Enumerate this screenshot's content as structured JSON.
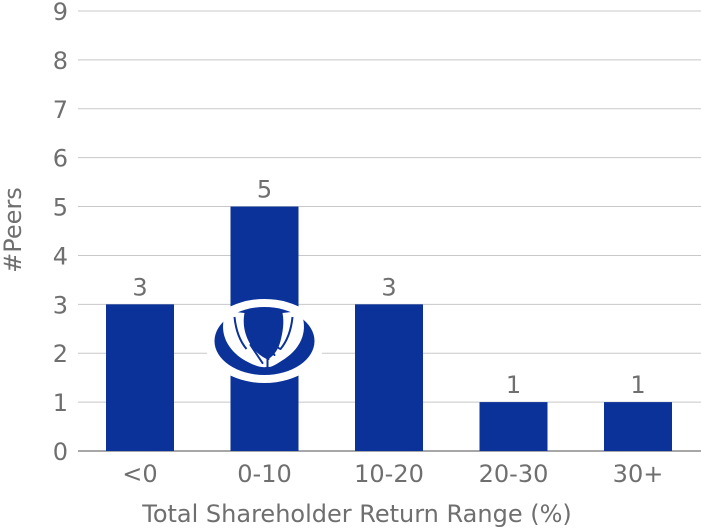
{
  "chart_data": {
    "type": "bar",
    "categories": [
      "<0",
      "0-10",
      "10-20",
      "20-30",
      "30+"
    ],
    "values": [
      3,
      5,
      3,
      1,
      1
    ],
    "title": "",
    "xlabel": "Total Shareholder Return Range (%)",
    "ylabel": "#Peers",
    "ylim": [
      0,
      9
    ],
    "yticks": [
      0,
      1,
      2,
      3,
      4,
      5,
      6,
      7,
      8,
      9
    ],
    "grid": true,
    "legend": "none",
    "data_labels": true,
    "logo_in_bar": "0-10"
  },
  "colors": {
    "bar": "#0a3299",
    "text": "#6f6f6f",
    "grid": "#c8c8c8",
    "logo_bg": "#ffffff"
  },
  "icons": {
    "logo": "allstate-hands-logo"
  }
}
